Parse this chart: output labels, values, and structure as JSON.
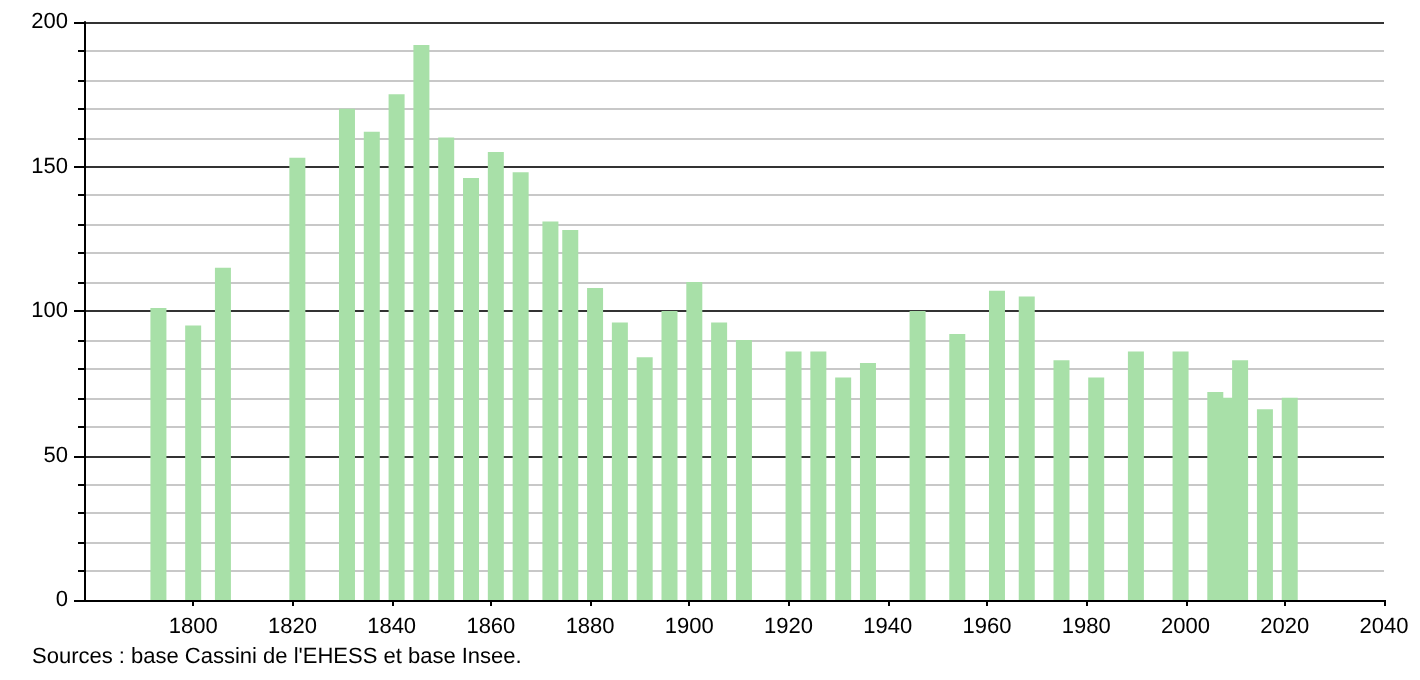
{
  "chart_data": {
    "type": "bar",
    "x": [
      1793,
      1800,
      1806,
      1821,
      1831,
      1836,
      1841,
      1846,
      1851,
      1856,
      1861,
      1866,
      1872,
      1876,
      1881,
      1886,
      1891,
      1896,
      1901,
      1906,
      1911,
      1921,
      1926,
      1931,
      1936,
      1946,
      1954,
      1962,
      1968,
      1975,
      1982,
      1990,
      1999,
      2006,
      2008,
      2011,
      2016,
      2021
    ],
    "values": [
      101,
      95,
      115,
      153,
      170,
      162,
      175,
      192,
      160,
      146,
      155,
      148,
      131,
      128,
      108,
      96,
      84,
      100,
      110,
      96,
      90,
      86,
      86,
      77,
      82,
      100,
      92,
      107,
      105,
      83,
      77,
      86,
      86,
      72,
      70,
      83,
      66,
      70
    ],
    "color": "#a8e0a8",
    "xlim": [
      1778,
      2040
    ],
    "xticks": [
      1800,
      1820,
      1840,
      1860,
      1880,
      1900,
      1920,
      1940,
      1960,
      1980,
      2000,
      2020,
      2040
    ],
    "ylim": [
      0,
      200
    ],
    "yticks": [
      0,
      50,
      100,
      150,
      200
    ],
    "grid": "y",
    "annotations": [
      "Sources : base Cassini de l'EHESS et base Insee."
    ]
  }
}
